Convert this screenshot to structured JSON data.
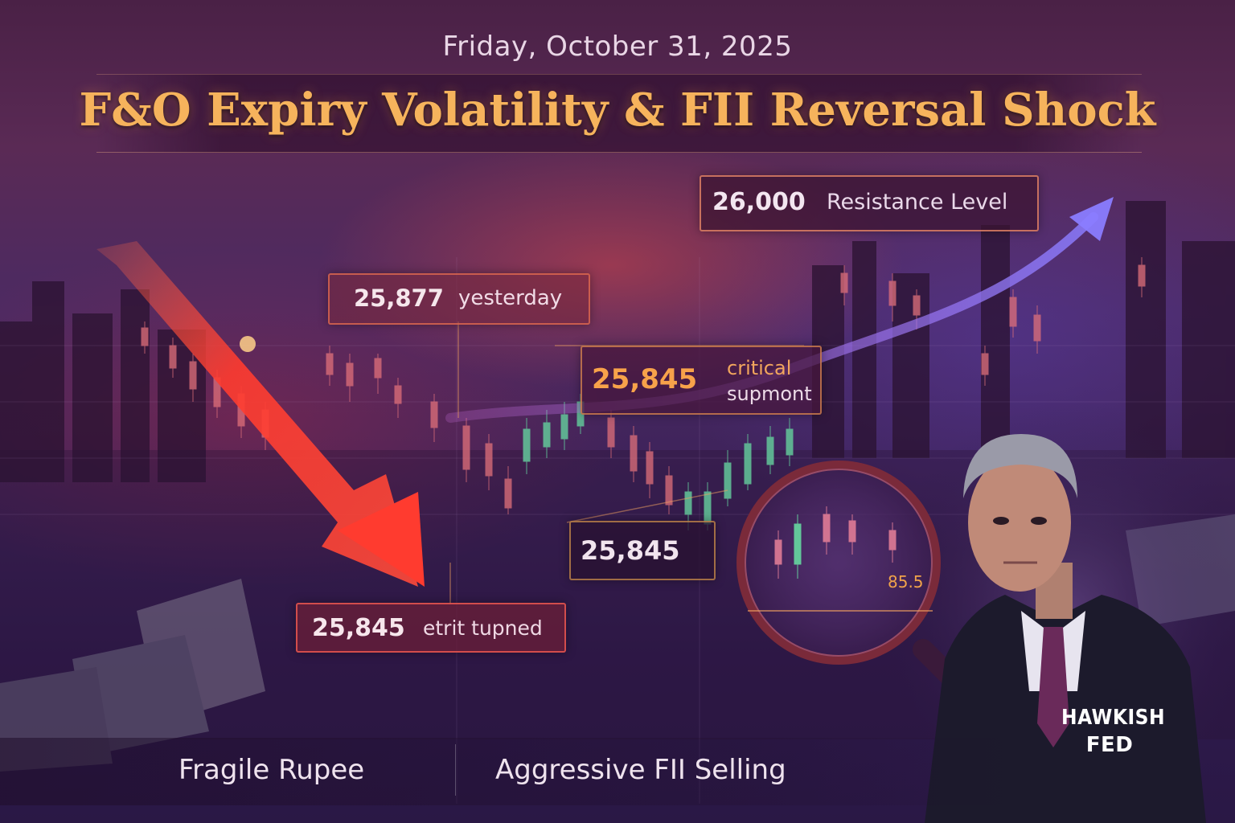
{
  "header": {
    "date": "Friday, October 31, 2025",
    "title": "F&O Expiry Volatility & FII Reversal Shock"
  },
  "callouts": {
    "resistance": {
      "value": "26,000",
      "label": "Resistance Level"
    },
    "yesterday": {
      "value": "25,877",
      "label": "yesterday"
    },
    "critical": {
      "value": "25,845",
      "label_line1": "critical",
      "label_line2": "supmont"
    },
    "level": {
      "value": "25,845"
    },
    "support": {
      "value": "25,845",
      "label": "etrit tupned"
    }
  },
  "magnifier": {
    "value": "85.5"
  },
  "badge": {
    "line1": "HAWKISH",
    "line2": "FED"
  },
  "footer": {
    "left": "Fragile Rupee",
    "right": "Aggressive FII Selling"
  },
  "colors": {
    "headline": "#f6b35c",
    "down_arrow": "#ff3b2f",
    "up_arrow": "#7b6cff",
    "bull_candle": "#63c79a",
    "bear_candle": "#e0707a"
  },
  "icons": [
    "down-arrow-icon",
    "up-arrow-icon",
    "magnifying-glass-icon",
    "money-pile-icon"
  ]
}
